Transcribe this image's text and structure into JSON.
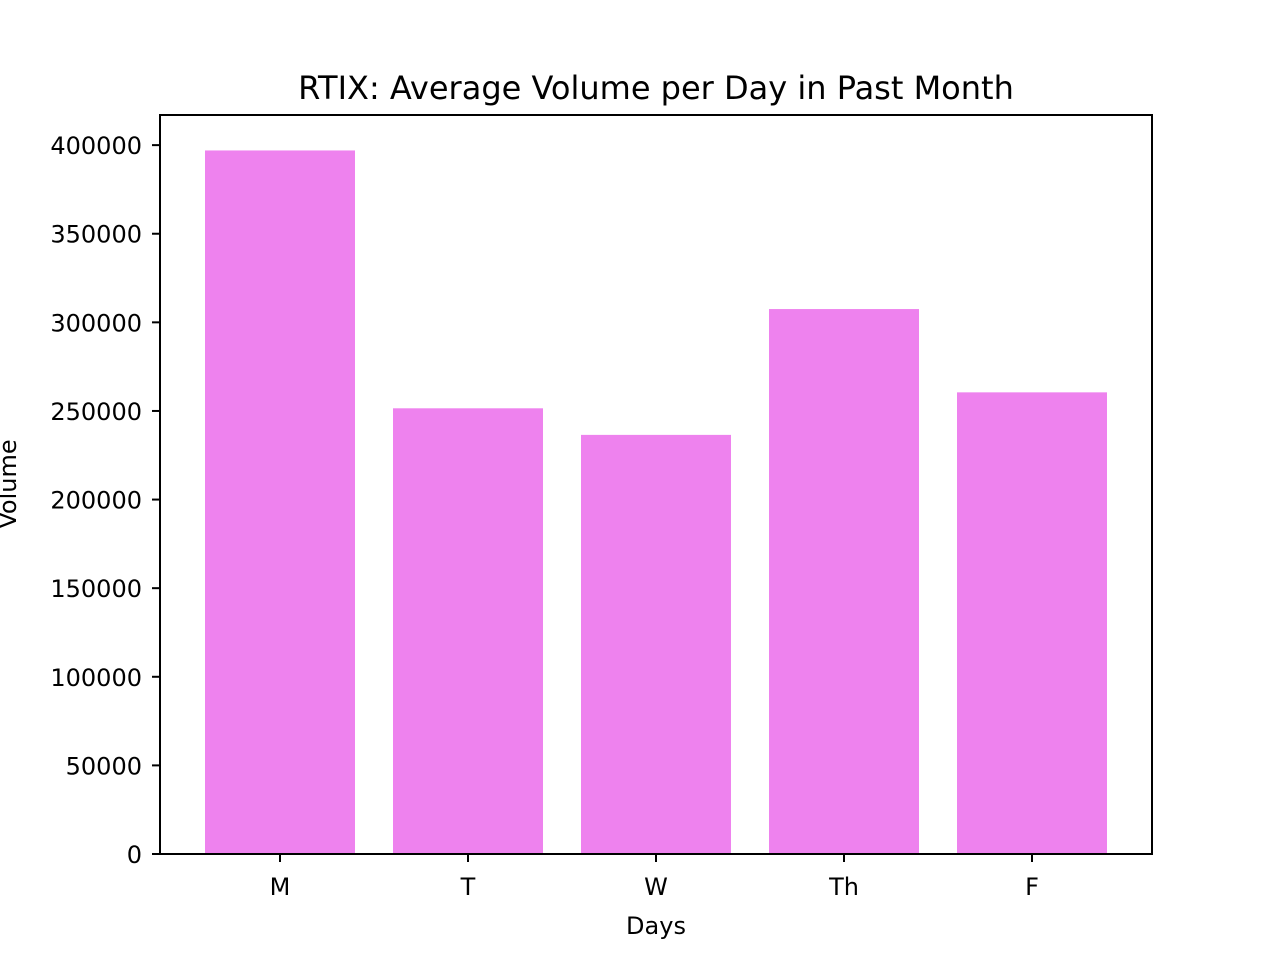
{
  "chart_data": {
    "type": "bar",
    "title": "RTIX: Average Volume per Day in Past Month",
    "xlabel": "Days",
    "ylabel": "Volume",
    "categories": [
      "M",
      "T",
      "W",
      "Th",
      "F"
    ],
    "values": [
      397000,
      251500,
      236500,
      307500,
      260500
    ],
    "ylim": [
      0,
      417000
    ],
    "yticks": [
      0,
      50000,
      100000,
      150000,
      200000,
      250000,
      300000,
      350000,
      400000
    ],
    "bar_color": "#ee82ee",
    "grid": false,
    "legend": "none"
  }
}
